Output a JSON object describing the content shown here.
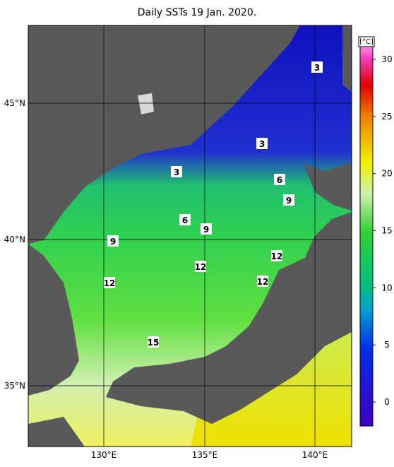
{
  "title": "Daily SSTs 19 Jan. 2020.",
  "latitude_labels": [
    "45°N",
    "40°N",
    "35°N"
  ],
  "longitude_labels": [
    "130°E",
    "135°E",
    "140°E"
  ],
  "colorbar": {
    "unit": "[°C]",
    "range": [
      -2.1,
      31.8
    ],
    "ticks": [
      0,
      5,
      10,
      15,
      20,
      25,
      30
    ]
  },
  "contour_labels": [
    3,
    3,
    3,
    6,
    6,
    9,
    9,
    9,
    12,
    12,
    12,
    12,
    15
  ]
}
